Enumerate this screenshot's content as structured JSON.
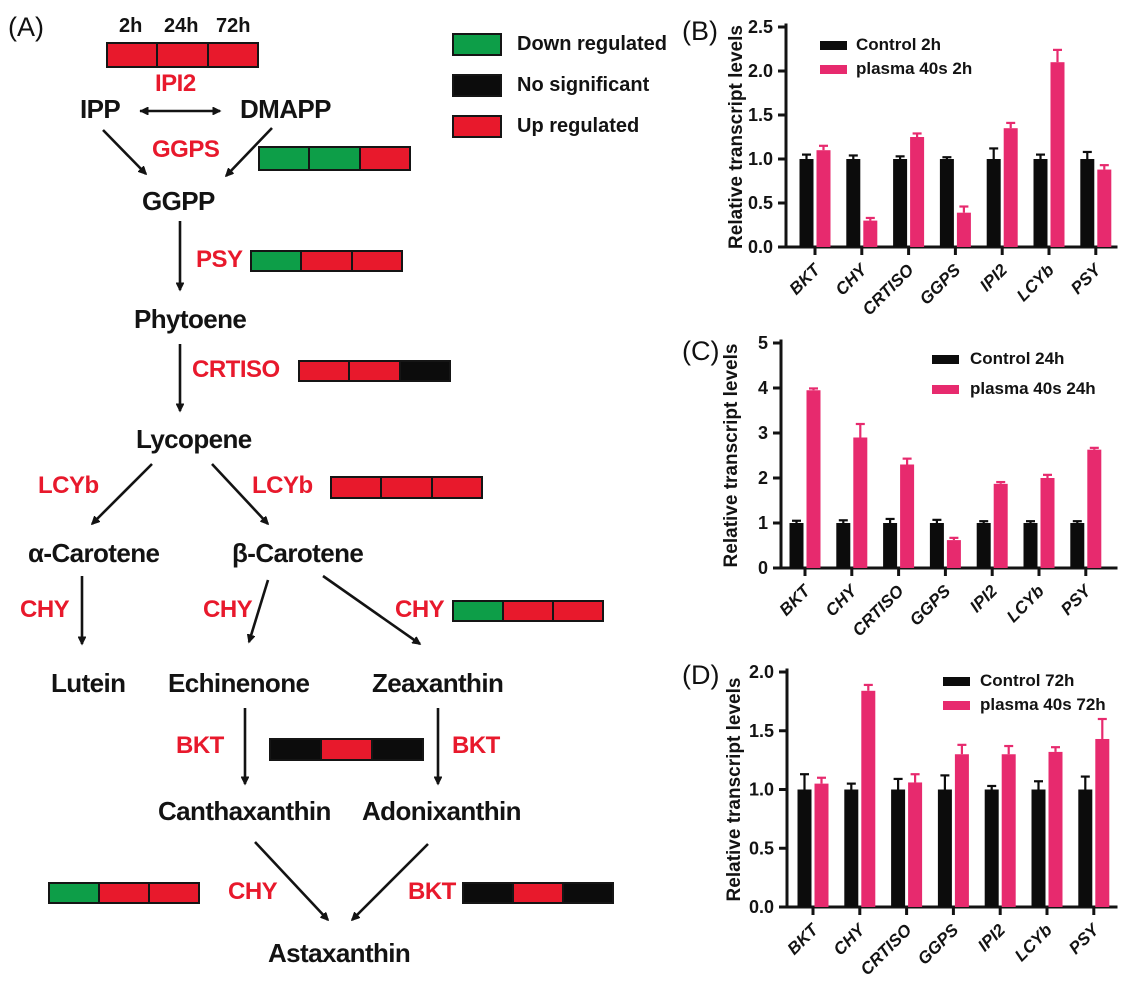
{
  "colors": {
    "up_red": "#e8192c",
    "down_green": "#0d9e48",
    "no_sig_black": "#0c0c0c",
    "pink": "#e72a6e",
    "bar_black": "#0c0c0c",
    "enzyme_red": "#e8192c"
  },
  "panels": {
    "a_label": "(A)",
    "b_label": "(B)",
    "c_label": "(C)",
    "d_label": "(D)"
  },
  "legend": {
    "items": [
      {
        "status": "down",
        "label": "Down regulated"
      },
      {
        "status": "ns",
        "label": "No significant"
      },
      {
        "status": "up",
        "label": "Up regulated"
      }
    ]
  },
  "pathway": {
    "time_labels": [
      "2h",
      "24h",
      "72h"
    ],
    "nodes": {
      "ipp": "IPP",
      "dmapp": "DMAPP",
      "ggpp": "GGPP",
      "phytoene": "Phytoene",
      "lycopene": "Lycopene",
      "alpha_carotene": "α-Carotene",
      "beta_carotene": "β-Carotene",
      "lutein": "Lutein",
      "echinenone": "Echinenone",
      "zeaxanthin": "Zeaxanthin",
      "canthaxanthin": "Canthaxanthin",
      "adonixanthin": "Adonixanthin",
      "astaxanthin": "Astaxanthin"
    },
    "enzymes": {
      "ipi2": "IPI2",
      "ggps": "GGPS",
      "psy": "PSY",
      "crtiso": "CRTISO",
      "lcyb_left": "LCYb",
      "lcyb_right": "LCYb",
      "chy_left": "CHY",
      "chy_mid": "CHY",
      "chy_right": "CHY",
      "bkt_left": "BKT",
      "bkt_right": "BKT",
      "chy_bottom": "CHY",
      "bkt_bottom": "BKT"
    },
    "heatmaps": {
      "ipi2": [
        "up",
        "up",
        "up"
      ],
      "ggps": [
        "down",
        "down",
        "up"
      ],
      "psy": [
        "down",
        "up",
        "up"
      ],
      "crtiso": [
        "up",
        "up",
        "ns"
      ],
      "lcyb": [
        "up",
        "up",
        "up"
      ],
      "chy_zeaxanthin": [
        "down",
        "up",
        "up"
      ],
      "bkt_middle": [
        "ns",
        "up",
        "ns"
      ],
      "chy_bottom": [
        "down",
        "up",
        "up"
      ],
      "bkt_bottom": [
        "ns",
        "up",
        "ns"
      ]
    }
  },
  "chart_data": [
    {
      "panel": "B",
      "type": "bar",
      "ylabel": "Relative transcript levels",
      "categories": [
        "BKT",
        "CHY",
        "CRTISO",
        "GGPS",
        "IPI2",
        "LCYb",
        "PSY"
      ],
      "ylim": [
        0,
        2.5
      ],
      "yticks": [
        "0.0",
        "0.5",
        "1.0",
        "1.5",
        "2.0",
        "2.5"
      ],
      "grid": false,
      "legend_position": "top-left",
      "series": [
        {
          "name": "Control 2h",
          "color_key": "bar_black",
          "values": [
            1.0,
            1.0,
            1.0,
            1.0,
            1.0,
            1.0,
            1.0
          ],
          "errors": [
            0.05,
            0.04,
            0.03,
            0.02,
            0.12,
            0.05,
            0.08
          ]
        },
        {
          "name": "plasma 40s 2h",
          "color_key": "pink",
          "values": [
            1.1,
            0.3,
            1.25,
            0.39,
            1.35,
            2.1,
            0.88
          ],
          "errors": [
            0.05,
            0.03,
            0.04,
            0.07,
            0.06,
            0.14,
            0.05
          ]
        }
      ]
    },
    {
      "panel": "C",
      "type": "bar",
      "ylabel": "Relative transcript levels",
      "categories": [
        "BKT",
        "CHY",
        "CRTISO",
        "GGPS",
        "IPI2",
        "LCYb",
        "PSY"
      ],
      "ylim": [
        0,
        5
      ],
      "yticks": [
        "0",
        "1",
        "2",
        "3",
        "4",
        "5"
      ],
      "grid": false,
      "legend_position": "top-right",
      "series": [
        {
          "name": "Control 24h",
          "color_key": "bar_black",
          "values": [
            1.0,
            1.0,
            1.0,
            1.0,
            1.0,
            1.0,
            1.0
          ],
          "errors": [
            0.05,
            0.06,
            0.09,
            0.07,
            0.04,
            0.04,
            0.04
          ]
        },
        {
          "name": "plasma 40s 24h",
          "color_key": "pink",
          "values": [
            3.95,
            2.9,
            2.3,
            0.62,
            1.87,
            2.0,
            2.63
          ],
          "errors": [
            0.04,
            0.3,
            0.13,
            0.05,
            0.04,
            0.07,
            0.04
          ]
        }
      ]
    },
    {
      "panel": "D",
      "type": "bar",
      "ylabel": "Relative transcript levels",
      "categories": [
        "BKT",
        "CHY",
        "CRTISO",
        "GGPS",
        "IPI2",
        "LCYb",
        "PSY"
      ],
      "ylim": [
        0,
        2.0
      ],
      "yticks": [
        "0.0",
        "0.5",
        "1.0",
        "1.5",
        "2.0"
      ],
      "grid": false,
      "legend_position": "top-right",
      "series": [
        {
          "name": "Control 72h",
          "color_key": "bar_black",
          "values": [
            1.0,
            1.0,
            1.0,
            1.0,
            1.0,
            1.0,
            1.0
          ],
          "errors": [
            0.13,
            0.05,
            0.09,
            0.12,
            0.03,
            0.07,
            0.11
          ]
        },
        {
          "name": "plasma 40s 72h",
          "color_key": "pink",
          "values": [
            1.05,
            1.84,
            1.06,
            1.3,
            1.3,
            1.32,
            1.43
          ],
          "errors": [
            0.05,
            0.05,
            0.07,
            0.08,
            0.07,
            0.04,
            0.17
          ]
        }
      ]
    }
  ]
}
